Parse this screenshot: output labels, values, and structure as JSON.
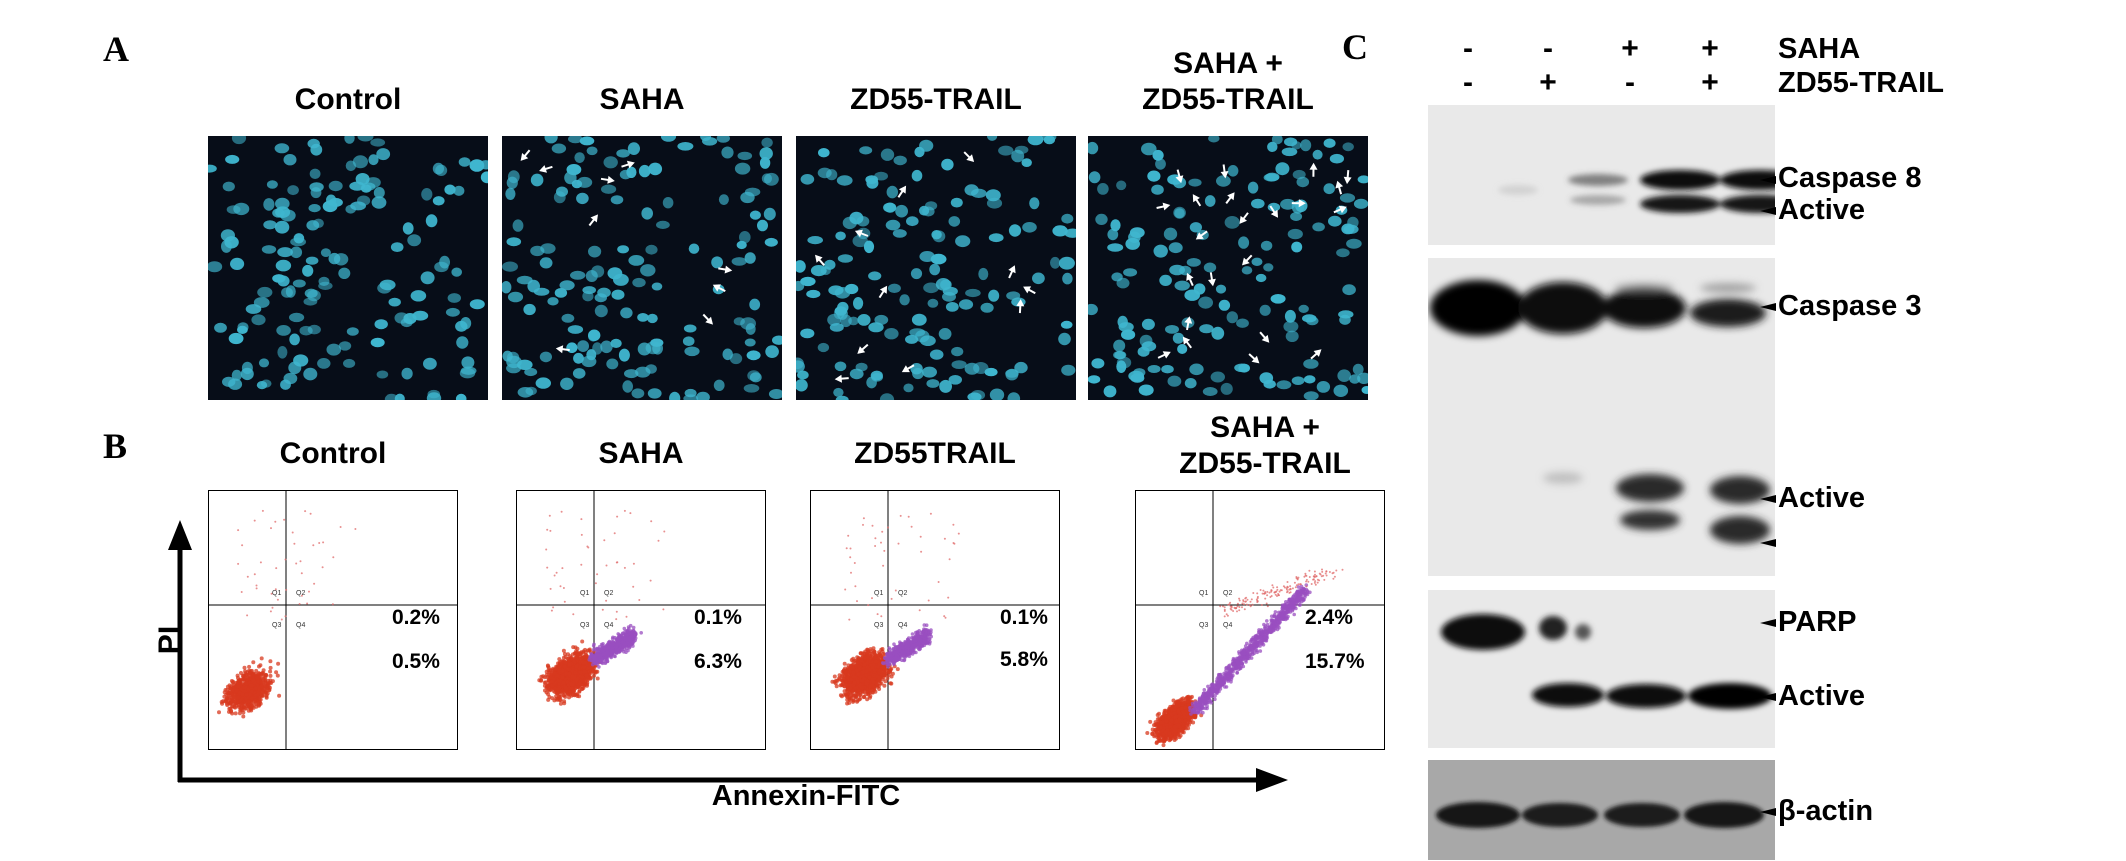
{
  "panel_labels": {
    "a": "A",
    "b": "B",
    "c": "C"
  },
  "panel_a": {
    "titles": [
      {
        "lines": [
          "Control"
        ]
      },
      {
        "lines": [
          "SAHA"
        ]
      },
      {
        "lines": [
          "ZD55-TRAIL"
        ]
      },
      {
        "lines": [
          "SAHA +",
          "ZD55-TRAIL"
        ]
      }
    ],
    "arrow_counts": [
      0,
      9,
      11,
      22
    ],
    "nuclei_color": "#3fb6cf",
    "background_color": "#070d18"
  },
  "panel_b": {
    "titles": [
      {
        "lines": [
          "Control"
        ]
      },
      {
        "lines": [
          "SAHA"
        ]
      },
      {
        "lines": [
          "ZD55TRAIL"
        ]
      },
      {
        "lines": [
          "SAHA +",
          "ZD55-TRAIL"
        ]
      }
    ],
    "y_axis_label": "PI",
    "x_axis_label": "Annexin-FITC",
    "quadrant_labels": [
      "Q1",
      "Q2",
      "Q3",
      "Q4"
    ],
    "plots": [
      {
        "upper_right": "0.2%",
        "lower_right": "0.5%"
      },
      {
        "upper_right": "0.1%",
        "lower_right": "6.3%"
      },
      {
        "upper_right": "0.1%",
        "lower_right": "5.8%"
      },
      {
        "upper_right": "2.4%",
        "lower_right": "15.7%"
      }
    ],
    "colors": {
      "live": "#d8391f",
      "apoptotic": "#9a4fc0",
      "scatter_sparse": "#e06b6b"
    }
  },
  "panel_c": {
    "treatments": [
      {
        "name": "SAHA",
        "lanes": [
          "-",
          "-",
          "+",
          "+"
        ]
      },
      {
        "name": "ZD55-TRAIL",
        "lanes": [
          "-",
          "+",
          "-",
          "+"
        ]
      }
    ],
    "blots": [
      {
        "name": "caspase8",
        "labels": [
          "Caspase 8",
          "Active"
        ]
      },
      {
        "name": "caspase3",
        "labels": [
          "Caspase 3",
          "Active",
          ""
        ]
      },
      {
        "name": "parp",
        "labels": [
          "PARP",
          "Active"
        ]
      },
      {
        "name": "actin",
        "labels": [
          "β-actin"
        ]
      }
    ]
  }
}
